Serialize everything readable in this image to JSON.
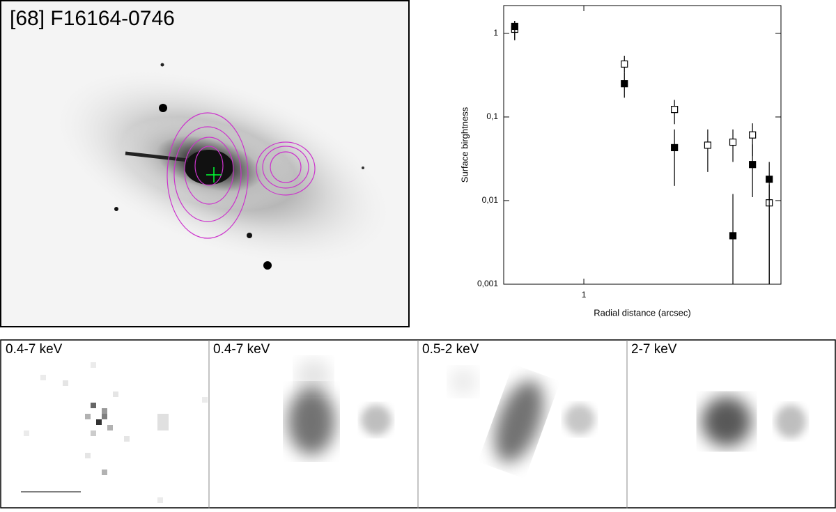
{
  "image_title": "[68] F16164-0746",
  "panels": [
    "0.4-7 keV",
    "0.4-7 keV",
    "0.5-2 keV",
    "2-7 keV"
  ],
  "chart_data": {
    "type": "scatter",
    "x_label": "Radial distance (arcsec)",
    "y_label": "Surface birghtness",
    "x": [
      0.55,
      1.42,
      2.19,
      2.92,
      3.63,
      4.3,
      4.97
    ],
    "series": [
      {
        "marker": "open-square",
        "color": "#000000",
        "values": [
          1.12,
          0.43,
          0.123,
          0.046,
          0.05,
          0.061,
          0.0094
        ],
        "lower": [
          0.83,
          0.34,
          0.082,
          0.022,
          0.029,
          0.034,
          0.001
        ],
        "upper": [
          1.41,
          0.54,
          0.16,
          0.071,
          0.071,
          0.084,
          0.0155
        ]
      },
      {
        "marker": "filled-square",
        "color": "#000000",
        "values": [
          1.21,
          0.25,
          0.043,
          null,
          0.0038,
          0.027,
          0.018
        ],
        "lower": [
          0.83,
          0.17,
          0.015,
          null,
          0.001,
          0.011,
          0.001
        ],
        "upper": [
          1.41,
          0.34,
          0.071,
          null,
          0.012,
          0.047,
          0.029
        ]
      }
    ],
    "xlog": true,
    "ylog": true,
    "xlim": [
      0.5,
      5.5
    ],
    "ylim": [
      0.001,
      2.15
    ],
    "xticks": [
      1
    ],
    "yticks": [
      {
        "value": 0.001,
        "label": "0,001"
      },
      {
        "value": 0.01,
        "label": "0,01"
      },
      {
        "value": 0.1,
        "label": "0,1"
      },
      1
    ]
  }
}
